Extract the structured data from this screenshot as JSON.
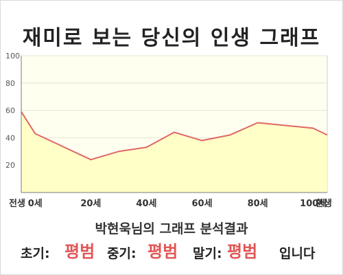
{
  "title": "재미로 보는 당신의 인생 그래프",
  "chart_data": {
    "type": "area",
    "x_ticks": [
      {
        "label": "전생",
        "x": -5
      },
      {
        "label": "0세",
        "x": 0
      },
      {
        "label": "20세",
        "x": 20
      },
      {
        "label": "40세",
        "x": 40
      },
      {
        "label": "60세",
        "x": 60
      },
      {
        "label": "80세",
        "x": 80
      },
      {
        "label": "100세",
        "x": 100
      },
      {
        "label": "환생",
        "x": 105
      }
    ],
    "xlim": [
      -5,
      105
    ],
    "y_ticks": [
      20,
      40,
      60,
      80,
      100
    ],
    "ylim": [
      0,
      100
    ],
    "points": [
      {
        "x": -5,
        "y": 59
      },
      {
        "x": 0,
        "y": 43
      },
      {
        "x": 20,
        "y": 24
      },
      {
        "x": 30,
        "y": 30
      },
      {
        "x": 40,
        "y": 33
      },
      {
        "x": 50,
        "y": 44
      },
      {
        "x": 60,
        "y": 38
      },
      {
        "x": 70,
        "y": 42
      },
      {
        "x": 80,
        "y": 51
      },
      {
        "x": 90,
        "y": 49
      },
      {
        "x": 100,
        "y": 47
      },
      {
        "x": 105,
        "y": 42
      }
    ],
    "line_color": "#e06666",
    "fill_color": "#ffffc4",
    "background_color": "#fffff0",
    "grid": true
  },
  "summary": "박현욱님의 그래프 분석결과",
  "result": {
    "early_label": "초기:",
    "early_value": "평범",
    "mid_label": "중기:",
    "mid_value": "평범",
    "late_label": "말기:",
    "late_value": "평범",
    "suffix": "입니다"
  }
}
